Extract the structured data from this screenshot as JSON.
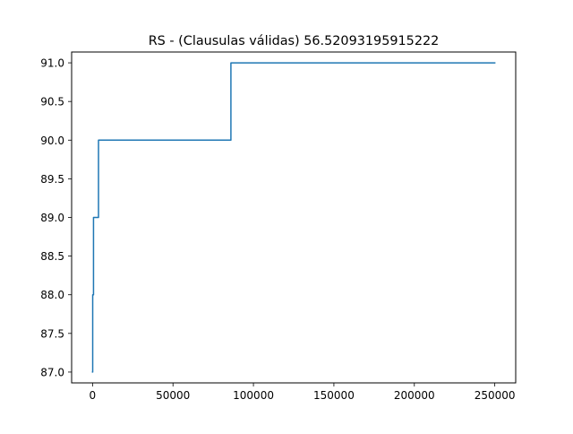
{
  "chart_data": {
    "type": "line",
    "title": "RS - (Clausulas válidas) 56.52093195915222",
    "xlabel": "",
    "ylabel": "",
    "xlim": [
      -13000,
      263000
    ],
    "ylim": [
      86.86,
      91.14
    ],
    "x_ticks": [
      0,
      50000,
      100000,
      150000,
      200000,
      250000
    ],
    "x_tick_labels": [
      "0",
      "50000",
      "100000",
      "150000",
      "200000",
      "250000"
    ],
    "y_ticks": [
      87.0,
      87.5,
      88.0,
      88.5,
      89.0,
      89.5,
      90.0,
      90.5,
      91.0
    ],
    "y_tick_labels": [
      "87.0",
      "87.5",
      "88.0",
      "88.5",
      "89.0",
      "89.5",
      "90.0",
      "90.5",
      "91.0"
    ],
    "grid": false,
    "series": [
      {
        "color": "#1f77b4",
        "x": [
          0,
          100,
          100,
          600,
          600,
          3700,
          3700,
          86000,
          86000,
          250000
        ],
        "y": [
          87.0,
          87.0,
          88.0,
          88.0,
          89.0,
          89.0,
          90.0,
          90.0,
          91.0,
          91.0
        ]
      }
    ]
  }
}
